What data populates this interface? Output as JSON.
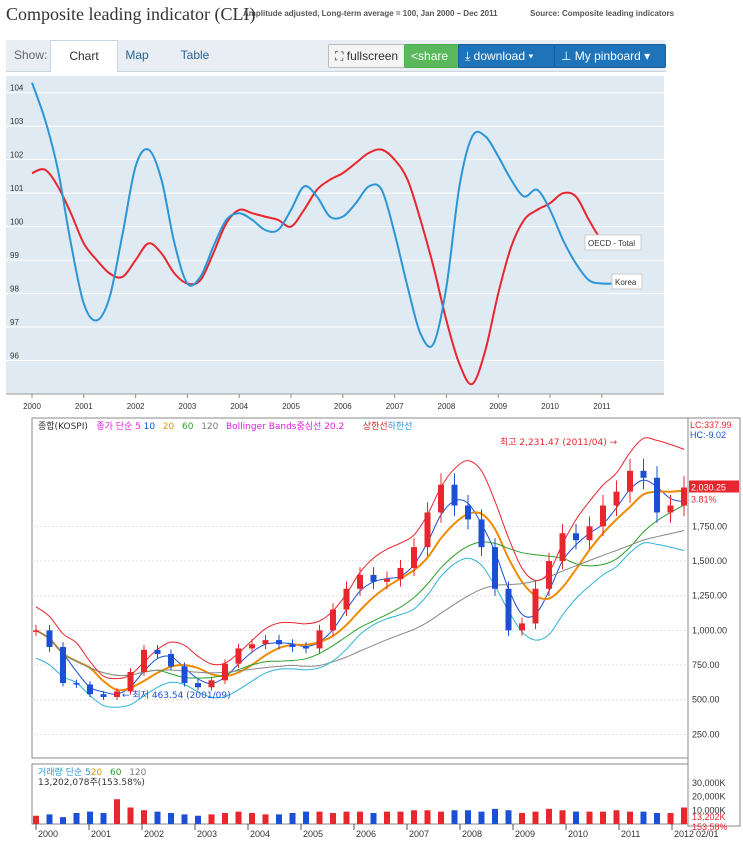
{
  "header": {
    "title": "Composite leading indicator (CLI)",
    "subtitle": "Amplitude adjusted, Long-term average = 100, Jan 2000 – Dec 2011",
    "source": "Source: Composite leading indicators"
  },
  "tabs": {
    "show": "Show:",
    "chart": "Chart",
    "map": "Map",
    "table": "Table"
  },
  "toolbar": {
    "fullscreen": "fullscreen",
    "share": "share",
    "download": "download ▾",
    "pinboard": "My pinboard ▾"
  },
  "colors": {
    "plot_bg": "#dfeaf2",
    "oecd": "#e8262d",
    "korea": "#2b95d6",
    "candle_up": "#e8262d",
    "candle_down": "#1a4fd6"
  },
  "chart_data": [
    {
      "type": "line",
      "x": [
        2000.0,
        2000.25,
        2000.5,
        2000.75,
        2001.0,
        2001.25,
        2001.5,
        2001.75,
        2002.0,
        2002.25,
        2002.5,
        2002.75,
        2003.0,
        2003.25,
        2003.5,
        2003.75,
        2004.0,
        2004.25,
        2004.5,
        2004.75,
        2005.0,
        2005.25,
        2005.5,
        2005.75,
        2006.0,
        2006.25,
        2006.5,
        2006.75,
        2007.0,
        2007.25,
        2007.5,
        2007.75,
        2008.0,
        2008.25,
        2008.5,
        2008.75,
        2009.0,
        2009.25,
        2009.5,
        2009.75,
        2010.0,
        2010.25,
        2010.5,
        2010.75,
        2011.0,
        2011.25,
        2011.5,
        2011.75
      ],
      "series": [
        {
          "name": "OECD - Total",
          "values": [
            101.6,
            101.7,
            101.2,
            100.4,
            99.5,
            99.0,
            98.6,
            98.5,
            99.0,
            99.5,
            99.2,
            98.6,
            98.3,
            98.4,
            99.2,
            100.1,
            100.5,
            100.4,
            100.3,
            100.2,
            100.0,
            100.5,
            101.1,
            101.4,
            101.6,
            101.9,
            102.2,
            102.3,
            102.0,
            101.4,
            100.2,
            98.8,
            97.2,
            95.9,
            95.3,
            96.3,
            98.0,
            99.4,
            100.2,
            100.5,
            100.7,
            101.0,
            100.9,
            100.2,
            99.6,
            99.4,
            99.5,
            99.6
          ]
        },
        {
          "name": "Korea",
          "values": [
            104.3,
            103.2,
            101.7,
            99.5,
            97.7,
            97.2,
            97.9,
            99.8,
            101.8,
            102.3,
            101.4,
            99.5,
            98.3,
            98.5,
            99.4,
            100.2,
            100.4,
            100.2,
            99.9,
            99.9,
            100.5,
            101.2,
            100.9,
            100.3,
            100.3,
            100.7,
            101.2,
            101.1,
            99.8,
            98.2,
            96.8,
            96.5,
            98.2,
            101.2,
            102.7,
            102.7,
            102.1,
            101.4,
            100.9,
            101.1,
            100.5,
            99.6,
            98.9,
            98.4,
            98.3,
            98.3,
            98.3,
            98.3
          ]
        }
      ],
      "ylim": [
        95,
        104.5
      ],
      "yticks": [
        "104",
        "103",
        "102",
        "101",
        "100",
        "99",
        "98",
        "97",
        "96"
      ],
      "xticks": [
        "2000",
        "2001",
        "2002",
        "2003",
        "2004",
        "2005",
        "2006",
        "2007",
        "2008",
        "2009",
        "2010",
        "2011"
      ],
      "grid": true,
      "labels": [
        "OECD - Total",
        "Korea"
      ]
    },
    {
      "type": "bar",
      "header_text": [
        "종합(KOSPI)",
        "종가 단순 5",
        "10",
        "20",
        "60",
        "120",
        "Bollinger Bands중심선 20.2",
        "상한선",
        "하한선"
      ],
      "lc": "LC:337.99",
      "hc": "HC:-9.02",
      "last_price": "2,030.25",
      "last_change": "3.81%",
      "high_annot": "최고 2,231.47 (2011/04) →",
      "low_annot": "← 최저 463.54 (2001/09)",
      "y_ticks": [
        "1,750.00",
        "1,500.00",
        "1,250.00",
        "1,000.00",
        "750.00",
        "500.00",
        "250.00"
      ],
      "ylim": [
        80,
        2430
      ],
      "price": [
        1000,
        880,
        620,
        610,
        540,
        520,
        560,
        700,
        860,
        830,
        740,
        620,
        590,
        640,
        760,
        870,
        900,
        930,
        900,
        880,
        870,
        1000,
        1150,
        1300,
        1400,
        1350,
        1370,
        1450,
        1600,
        1850,
        2050,
        1900,
        1800,
        1600,
        1300,
        1000,
        1050,
        1300,
        1500,
        1700,
        1650,
        1750,
        1900,
        2000,
        2150,
        2100,
        1850,
        1900,
        2030
      ],
      "volume_header": [
        "거래량 단순 5",
        "20",
        "60",
        "120"
      ],
      "volume_value": "13,202,078주(153.58%)",
      "volume_ticks": [
        "30,000K",
        "20,000K",
        "10,000K"
      ],
      "volume_last": "13,202K",
      "volume_pct": "153.58%",
      "volume": [
        6,
        7,
        5,
        8,
        9,
        8,
        18,
        12,
        10,
        9,
        8,
        7,
        6,
        7,
        8,
        9,
        8,
        7,
        7,
        8,
        9,
        9,
        8,
        9,
        9,
        8,
        9,
        9,
        10,
        10,
        9,
        10,
        10,
        9,
        11,
        10,
        8,
        9,
        11,
        10,
        9,
        9,
        9,
        10,
        9,
        9,
        8,
        8,
        12
      ],
      "x_labels": [
        "2000",
        "2001",
        "2002",
        "2003",
        "2004",
        "2005",
        "2006",
        "2007",
        "2008",
        "2009",
        "2010",
        "2011",
        "2012"
      ],
      "corner_label": "02/01"
    }
  ]
}
